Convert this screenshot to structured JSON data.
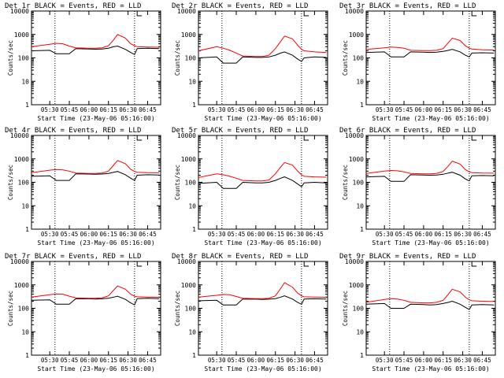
{
  "colors": {
    "events": "#000000",
    "lld": "#ff0000",
    "frame": "#000000",
    "background": "#ffffff"
  },
  "chart_data": [
    {
      "type": "line",
      "title": "Det 1r BLACK = Events, RED = LLD",
      "xlabel": "Start Time (23-May-06 05:16:00)",
      "ylabel": "Counts/sec",
      "yscale": "log",
      "ylim": [
        1,
        10000
      ],
      "ytick_labels": [
        "1",
        "10",
        "100",
        "1000",
        "10000"
      ],
      "xtick_labels": [
        "05:30",
        "05:45",
        "06:00",
        "06:15",
        "06:30",
        "06:45"
      ],
      "xlim": [
        "05:16",
        "06:55"
      ],
      "grid": false,
      "markers": [
        {
          "style": "dotted vertical",
          "x": "05:34"
        },
        {
          "style": "dotted vertical",
          "x": "06:35"
        }
      ],
      "x": [
        "05:16",
        "05:30",
        "05:35",
        "05:40",
        "05:45",
        "05:50",
        "06:00",
        "06:05",
        "06:10",
        "06:15",
        "06:19",
        "06:22",
        "06:28",
        "06:32",
        "06:35",
        "06:37",
        "06:45",
        "06:54"
      ],
      "series": [
        {
          "name": "Events",
          "color": "#000000",
          "values": [
            200,
            210,
            150,
            150,
            150,
            250,
            240,
            235,
            240,
            260,
            300,
            320,
            230,
            170,
            140,
            250,
            260,
            250
          ]
        },
        {
          "name": "LLD",
          "color": "#ff0000",
          "values": [
            300,
            380,
            420,
            400,
            320,
            270,
            260,
            260,
            270,
            330,
            600,
            1000,
            700,
            400,
            330,
            300,
            290,
            285
          ]
        }
      ]
    },
    {
      "type": "line",
      "title": "Det 2r BLACK = Events, RED = LLD",
      "xlabel": "Start Time (23-May-06 05:16:00)",
      "ylabel": "Counts/sec",
      "yscale": "log",
      "ylim": [
        1,
        10000
      ],
      "ytick_labels": [
        "1",
        "10",
        "100",
        "1000",
        "10000"
      ],
      "xtick_labels": [
        "05:30",
        "05:45",
        "06:00",
        "06:15",
        "06:30",
        "06:45"
      ],
      "xlim": [
        "05:16",
        "06:55"
      ],
      "grid": false,
      "markers": [
        {
          "style": "dotted vertical",
          "x": "05:34"
        },
        {
          "style": "dotted vertical",
          "x": "06:35"
        }
      ],
      "x": [
        "05:16",
        "05:30",
        "05:35",
        "05:40",
        "05:45",
        "05:50",
        "06:00",
        "06:05",
        "06:10",
        "06:15",
        "06:19",
        "06:22",
        "06:28",
        "06:32",
        "06:35",
        "06:37",
        "06:45",
        "06:54"
      ],
      "series": [
        {
          "name": "Events",
          "color": "#000000",
          "values": [
            100,
            110,
            60,
            60,
            60,
            110,
            105,
            105,
            110,
            130,
            160,
            180,
            130,
            90,
            70,
            100,
            110,
            105
          ]
        },
        {
          "name": "LLD",
          "color": "#ff0000",
          "values": [
            200,
            300,
            260,
            210,
            160,
            120,
            115,
            115,
            130,
            250,
            500,
            850,
            650,
            350,
            230,
            200,
            180,
            170
          ]
        }
      ]
    },
    {
      "type": "line",
      "title": "Det 3r BLACK = Events, RED = LLD",
      "xlabel": "Start Time (23-May-06 05:16:00)",
      "ylabel": "Counts/sec",
      "yscale": "log",
      "ylim": [
        1,
        10000
      ],
      "ytick_labels": [
        "1",
        "10",
        "100",
        "1000",
        "10000"
      ],
      "xtick_labels": [
        "05:30",
        "05:45",
        "06:00",
        "06:15",
        "06:30",
        "06:45"
      ],
      "xlim": [
        "05:16",
        "06:55"
      ],
      "grid": false,
      "markers": [
        {
          "style": "dotted vertical",
          "x": "05:34"
        },
        {
          "style": "dotted vertical",
          "x": "06:35"
        }
      ],
      "x": [
        "05:16",
        "05:30",
        "05:35",
        "05:40",
        "05:45",
        "05:50",
        "06:00",
        "06:05",
        "06:10",
        "06:15",
        "06:19",
        "06:22",
        "06:28",
        "06:32",
        "06:35",
        "06:37",
        "06:45",
        "06:54"
      ],
      "series": [
        {
          "name": "Events",
          "color": "#000000",
          "values": [
            170,
            180,
            110,
            110,
            110,
            180,
            175,
            170,
            175,
            190,
            210,
            230,
            180,
            130,
            110,
            160,
            165,
            160
          ]
        },
        {
          "name": "LLD",
          "color": "#ff0000",
          "values": [
            230,
            270,
            290,
            280,
            260,
            210,
            205,
            205,
            210,
            250,
            450,
            700,
            550,
            330,
            260,
            240,
            220,
            215
          ]
        }
      ]
    },
    {
      "type": "line",
      "title": "Det 4r BLACK = Events, RED = LLD",
      "xlabel": "Start Time (23-May-06 05:16:00)",
      "ylabel": "Counts/sec",
      "yscale": "log",
      "ylim": [
        1,
        10000
      ],
      "ytick_labels": [
        "1",
        "10",
        "100",
        "1000",
        "10000"
      ],
      "xtick_labels": [
        "05:30",
        "05:45",
        "06:00",
        "06:15",
        "06:30",
        "06:45"
      ],
      "xlim": [
        "05:16",
        "06:55"
      ],
      "grid": false,
      "markers": [
        {
          "style": "dotted vertical",
          "x": "05:34"
        },
        {
          "style": "dotted vertical",
          "x": "06:35"
        }
      ],
      "x": [
        "05:16",
        "05:30",
        "05:35",
        "05:40",
        "05:45",
        "05:50",
        "06:00",
        "06:05",
        "06:10",
        "06:15",
        "06:19",
        "06:22",
        "06:28",
        "06:32",
        "06:35",
        "06:37",
        "06:45",
        "06:54"
      ],
      "series": [
        {
          "name": "Events",
          "color": "#000000",
          "values": [
            180,
            190,
            120,
            120,
            120,
            230,
            225,
            220,
            225,
            240,
            270,
            290,
            210,
            150,
            120,
            200,
            210,
            205
          ]
        },
        {
          "name": "LLD",
          "color": "#ff0000",
          "values": [
            260,
            330,
            350,
            340,
            300,
            250,
            240,
            240,
            250,
            300,
            550,
            850,
            620,
            360,
            290,
            270,
            260,
            255
          ]
        }
      ]
    },
    {
      "type": "line",
      "title": "Det 5r BLACK = Events, RED = LLD",
      "xlabel": "Start Time (23-May-06 05:16:00)",
      "ylabel": "Counts/sec",
      "yscale": "log",
      "ylim": [
        1,
        10000
      ],
      "ytick_labels": [
        "1",
        "10",
        "100",
        "1000",
        "10000"
      ],
      "xtick_labels": [
        "05:30",
        "05:45",
        "06:00",
        "06:15",
        "06:30",
        "06:45"
      ],
      "xlim": [
        "05:16",
        "06:55"
      ],
      "grid": false,
      "markers": [
        {
          "style": "dotted vertical",
          "x": "05:34"
        },
        {
          "style": "dotted vertical",
          "x": "06:35"
        }
      ],
      "x": [
        "05:16",
        "05:30",
        "05:35",
        "05:40",
        "05:45",
        "05:50",
        "06:00",
        "06:05",
        "06:10",
        "06:15",
        "06:19",
        "06:22",
        "06:28",
        "06:32",
        "06:35",
        "06:37",
        "06:45",
        "06:54"
      ],
      "series": [
        {
          "name": "Events",
          "color": "#000000",
          "values": [
            90,
            100,
            55,
            55,
            55,
            100,
            95,
            95,
            100,
            120,
            150,
            170,
            120,
            85,
            65,
            95,
            100,
            95
          ]
        },
        {
          "name": "LLD",
          "color": "#ff0000",
          "values": [
            160,
            230,
            210,
            180,
            150,
            120,
            115,
            115,
            125,
            230,
            450,
            700,
            550,
            300,
            210,
            180,
            170,
            165
          ]
        }
      ]
    },
    {
      "type": "line",
      "title": "Det 6r BLACK = Events, RED = LLD",
      "xlabel": "Start Time (23-May-06 05:16:00)",
      "ylabel": "Counts/sec",
      "yscale": "log",
      "ylim": [
        1,
        10000
      ],
      "ytick_labels": [
        "1",
        "10",
        "100",
        "1000",
        "10000"
      ],
      "xtick_labels": [
        "05:30",
        "05:45",
        "06:00",
        "06:15",
        "06:30",
        "06:45"
      ],
      "xlim": [
        "05:16",
        "06:55"
      ],
      "grid": false,
      "markers": [
        {
          "style": "dotted vertical",
          "x": "05:34"
        },
        {
          "style": "dotted vertical",
          "x": "06:35"
        }
      ],
      "x": [
        "05:16",
        "05:30",
        "05:35",
        "05:40",
        "05:45",
        "05:50",
        "06:00",
        "06:05",
        "06:10",
        "06:15",
        "06:19",
        "06:22",
        "06:28",
        "06:32",
        "06:35",
        "06:37",
        "06:45",
        "06:54"
      ],
      "series": [
        {
          "name": "Events",
          "color": "#000000",
          "values": [
            170,
            180,
            110,
            110,
            110,
            210,
            205,
            200,
            205,
            220,
            250,
            270,
            200,
            140,
            115,
            190,
            195,
            190
          ]
        },
        {
          "name": "LLD",
          "color": "#ff0000",
          "values": [
            240,
            300,
            320,
            310,
            280,
            240,
            230,
            230,
            240,
            290,
            500,
            800,
            600,
            350,
            280,
            260,
            250,
            245
          ]
        }
      ]
    },
    {
      "type": "line",
      "title": "Det 7r BLACK = Events, RED = LLD",
      "xlabel": "Start Time (23-May-06 05:16:00)",
      "ylabel": "Counts/sec",
      "yscale": "log",
      "ylim": [
        1,
        10000
      ],
      "ytick_labels": [
        "1",
        "10",
        "100",
        "1000",
        "10000"
      ],
      "xtick_labels": [
        "05:30",
        "05:45",
        "06:00",
        "06:15",
        "06:30",
        "06:45"
      ],
      "xlim": [
        "05:16",
        "06:55"
      ],
      "grid": false,
      "markers": [
        {
          "style": "dotted vertical",
          "x": "05:34"
        },
        {
          "style": "dotted vertical",
          "x": "06:35"
        }
      ],
      "x": [
        "05:16",
        "05:30",
        "05:35",
        "05:40",
        "05:45",
        "05:50",
        "06:00",
        "06:05",
        "06:10",
        "06:15",
        "06:19",
        "06:22",
        "06:28",
        "06:32",
        "06:35",
        "06:37",
        "06:45",
        "06:54"
      ],
      "series": [
        {
          "name": "Events",
          "color": "#000000",
          "values": [
            220,
            230,
            150,
            150,
            150,
            260,
            255,
            250,
            255,
            270,
            300,
            330,
            240,
            170,
            140,
            260,
            270,
            260
          ]
        },
        {
          "name": "LLD",
          "color": "#ff0000",
          "values": [
            300,
            380,
            410,
            400,
            330,
            280,
            270,
            270,
            280,
            340,
            600,
            900,
            650,
            400,
            330,
            310,
            300,
            295
          ]
        }
      ]
    },
    {
      "type": "line",
      "title": "Det 8r BLACK = Events, RED = LLD",
      "xlabel": "Start Time (23-May-06 05:16:00)",
      "ylabel": "Counts/sec",
      "yscale": "log",
      "ylim": [
        1,
        10000
      ],
      "ytick_labels": [
        "1",
        "10",
        "100",
        "1000",
        "10000"
      ],
      "xtick_labels": [
        "05:30",
        "05:45",
        "06:00",
        "06:15",
        "06:30",
        "06:45"
      ],
      "xlim": [
        "05:16",
        "06:55"
      ],
      "grid": false,
      "markers": [
        {
          "style": "dotted vertical",
          "x": "05:34"
        },
        {
          "style": "dotted vertical",
          "x": "06:35"
        }
      ],
      "x": [
        "05:16",
        "05:30",
        "05:35",
        "05:40",
        "05:45",
        "05:50",
        "06:00",
        "06:05",
        "06:10",
        "06:15",
        "06:19",
        "06:22",
        "06:28",
        "06:32",
        "06:35",
        "06:37",
        "06:45",
        "06:54"
      ],
      "series": [
        {
          "name": "Events",
          "color": "#000000",
          "values": [
            210,
            220,
            140,
            140,
            140,
            250,
            245,
            240,
            245,
            260,
            300,
            340,
            250,
            180,
            150,
            250,
            255,
            250
          ]
        },
        {
          "name": "LLD",
          "color": "#ff0000",
          "values": [
            300,
            360,
            390,
            380,
            320,
            270,
            260,
            260,
            270,
            340,
            700,
            1250,
            800,
            450,
            340,
            310,
            300,
            295
          ]
        }
      ]
    },
    {
      "type": "line",
      "title": "Det 9r BLACK = Events, RED = LLD",
      "xlabel": "Start Time (23-May-06 05:16:00)",
      "ylabel": "Counts/sec",
      "yscale": "log",
      "ylim": [
        1,
        10000
      ],
      "ytick_labels": [
        "1",
        "10",
        "100",
        "1000",
        "10000"
      ],
      "xtick_labels": [
        "05:30",
        "05:45",
        "06:00",
        "06:15",
        "06:30",
        "06:45"
      ],
      "xlim": [
        "05:16",
        "06:55"
      ],
      "grid": false,
      "markers": [
        {
          "style": "dotted vertical",
          "x": "05:34"
        },
        {
          "style": "dotted vertical",
          "x": "06:35"
        }
      ],
      "x": [
        "05:16",
        "05:30",
        "05:35",
        "05:40",
        "05:45",
        "05:50",
        "06:00",
        "06:05",
        "06:10",
        "06:15",
        "06:19",
        "06:22",
        "06:28",
        "06:32",
        "06:35",
        "06:37",
        "06:45",
        "06:54"
      ],
      "series": [
        {
          "name": "Events",
          "color": "#000000",
          "values": [
            150,
            160,
            100,
            100,
            100,
            150,
            145,
            140,
            145,
            160,
            180,
            200,
            150,
            110,
            90,
            140,
            145,
            140
          ]
        },
        {
          "name": "LLD",
          "color": "#ff0000",
          "values": [
            180,
            240,
            260,
            250,
            220,
            180,
            170,
            170,
            180,
            220,
            400,
            650,
            500,
            300,
            230,
            210,
            200,
            195
          ]
        }
      ]
    }
  ]
}
